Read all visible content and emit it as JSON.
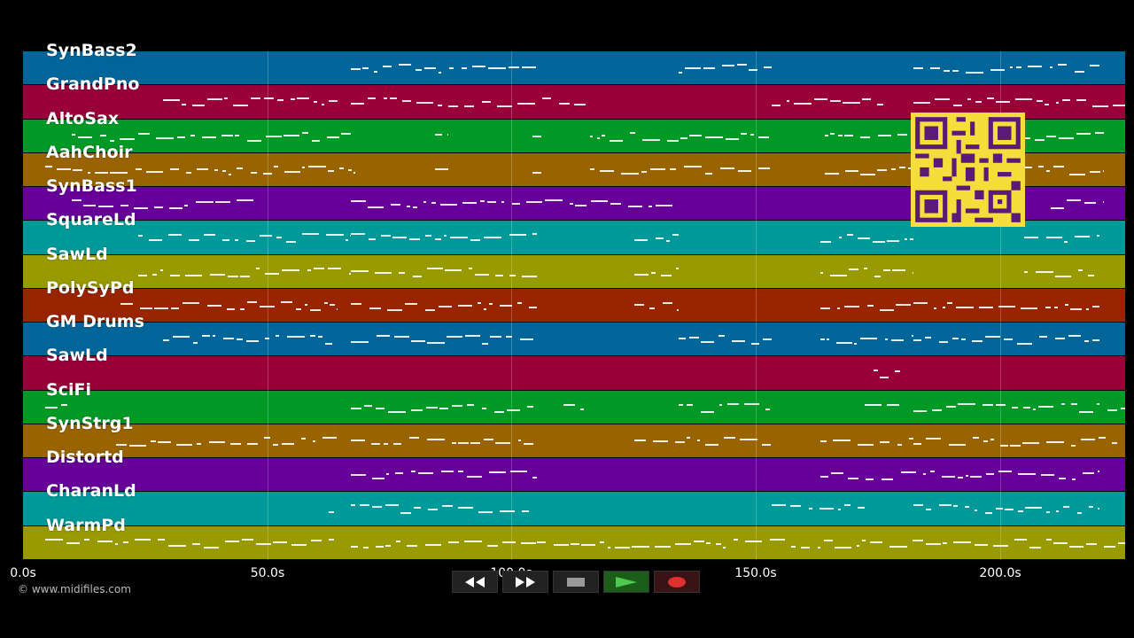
{
  "window": {
    "credit": "© www.midifiles.com"
  },
  "tracks": [
    {
      "label": "SynBass2",
      "color": "#00669a"
    },
    {
      "label": "GrandPno",
      "color": "#990038"
    },
    {
      "label": "AltoSax",
      "color": "#009926"
    },
    {
      "label": "AahChoir",
      "color": "#996300"
    },
    {
      "label": "SynBass1",
      "color": "#660099"
    },
    {
      "label": "SquareLd",
      "color": "#009999"
    },
    {
      "label": "SawLd",
      "color": "#999900"
    },
    {
      "label": "PolySyPd",
      "color": "#992500"
    },
    {
      "label": "GM Drums",
      "color": "#00669a"
    },
    {
      "label": "SawLd",
      "color": "#990038"
    },
    {
      "label": "SciFi",
      "color": "#009926"
    },
    {
      "label": "SynStrg1",
      "color": "#996300"
    },
    {
      "label": "Distortd",
      "color": "#660099"
    },
    {
      "label": "CharanLd",
      "color": "#009999"
    },
    {
      "label": "WarmPd",
      "color": "#999900"
    }
  ],
  "timeline": {
    "ticks": [
      "0.0s",
      "50.0s",
      "100.0s",
      "150.0s",
      "200.0s"
    ]
  },
  "transport": {
    "rewind": "rewind-icon",
    "fast_forward": "fast-forward-icon",
    "stop": "stop-icon",
    "play": "play-icon",
    "record": "record-icon"
  },
  "accent_colors": {
    "qr": "#f5dd3c",
    "qr_dark": "#5a1a78",
    "play": "#4fc94f",
    "record": "#e03030"
  }
}
